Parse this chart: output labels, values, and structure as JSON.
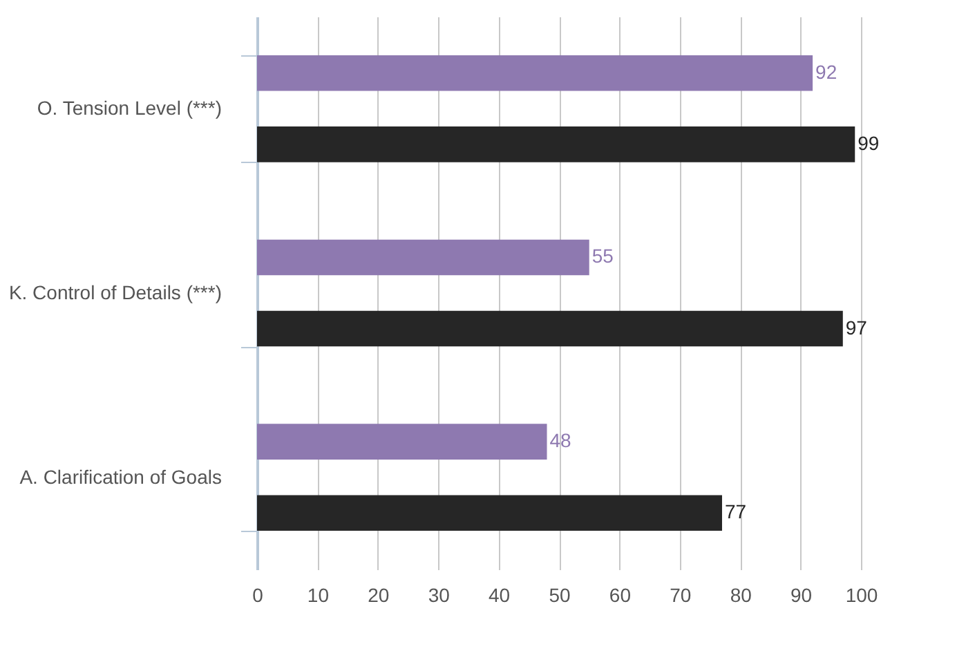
{
  "chart_data": {
    "type": "bar",
    "orientation": "horizontal",
    "categories": [
      "O. Tension Level (***)",
      "K. Control of Details (***)",
      "A. Clarification of Goals"
    ],
    "series": [
      {
        "color": "#8e79b0",
        "values": [
          92,
          55,
          48
        ]
      },
      {
        "color": "#262626",
        "values": [
          99,
          97,
          77
        ]
      }
    ],
    "xlim": [
      0,
      100
    ],
    "xticks": [
      0,
      10,
      20,
      30,
      40,
      50,
      60,
      70,
      80,
      90,
      100
    ],
    "grid": "x",
    "legend": false,
    "data_labels": true
  }
}
